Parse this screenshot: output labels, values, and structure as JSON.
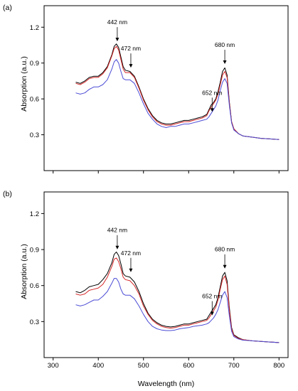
{
  "chart_data": [
    {
      "type": "line",
      "panel_label": "(a)",
      "xlabel": "",
      "ylabel": "Absorption (a.u.)",
      "xlim": [
        280,
        820
      ],
      "ylim": [
        0.0,
        1.38
      ],
      "xticks": [
        300,
        400,
        500,
        600,
        700,
        800
      ],
      "xtick_labels": [
        "",
        "",
        "",
        "",
        "",
        ""
      ],
      "yticks": [
        0.3,
        0.6,
        0.9,
        1.2
      ],
      "ytick_labels": [
        "0.3",
        "0.6",
        "0.9",
        "1.2"
      ],
      "grid": false,
      "legend": "none",
      "x": [
        350,
        360,
        370,
        380,
        390,
        400,
        410,
        420,
        430,
        435,
        440,
        445,
        450,
        455,
        460,
        470,
        480,
        490,
        500,
        510,
        520,
        530,
        540,
        550,
        560,
        570,
        580,
        590,
        600,
        610,
        620,
        630,
        640,
        645,
        650,
        655,
        660,
        665,
        670,
        675,
        680,
        685,
        690,
        695,
        700,
        710,
        720,
        740,
        760,
        780,
        800
      ],
      "series": [
        {
          "color": "#000000",
          "values": [
            0.74,
            0.73,
            0.75,
            0.78,
            0.79,
            0.79,
            0.82,
            0.87,
            0.97,
            1.04,
            1.06,
            1.03,
            0.95,
            0.87,
            0.84,
            0.83,
            0.79,
            0.7,
            0.6,
            0.52,
            0.46,
            0.42,
            0.4,
            0.39,
            0.39,
            0.4,
            0.41,
            0.42,
            0.42,
            0.43,
            0.44,
            0.45,
            0.47,
            0.51,
            0.55,
            0.57,
            0.6,
            0.66,
            0.74,
            0.83,
            0.86,
            0.8,
            0.58,
            0.41,
            0.35,
            0.31,
            0.29,
            0.28,
            0.27,
            0.265,
            0.26
          ]
        },
        {
          "color": "#d62728",
          "values": [
            0.73,
            0.72,
            0.74,
            0.77,
            0.78,
            0.78,
            0.81,
            0.86,
            0.96,
            1.02,
            1.04,
            1.01,
            0.93,
            0.85,
            0.82,
            0.82,
            0.78,
            0.69,
            0.59,
            0.51,
            0.45,
            0.41,
            0.39,
            0.38,
            0.38,
            0.39,
            0.4,
            0.41,
            0.41,
            0.42,
            0.43,
            0.44,
            0.46,
            0.5,
            0.53,
            0.56,
            0.59,
            0.64,
            0.72,
            0.8,
            0.83,
            0.78,
            0.57,
            0.41,
            0.35,
            0.31,
            0.29,
            0.28,
            0.27,
            0.265,
            0.26
          ]
        },
        {
          "color": "#4c4cd6",
          "values": [
            0.65,
            0.64,
            0.65,
            0.68,
            0.7,
            0.7,
            0.72,
            0.76,
            0.85,
            0.91,
            0.93,
            0.9,
            0.83,
            0.77,
            0.76,
            0.76,
            0.73,
            0.65,
            0.56,
            0.48,
            0.43,
            0.39,
            0.37,
            0.36,
            0.37,
            0.37,
            0.38,
            0.39,
            0.39,
            0.4,
            0.41,
            0.42,
            0.43,
            0.45,
            0.48,
            0.51,
            0.54,
            0.59,
            0.67,
            0.74,
            0.77,
            0.73,
            0.55,
            0.4,
            0.34,
            0.31,
            0.29,
            0.28,
            0.27,
            0.265,
            0.26
          ]
        }
      ],
      "annotations": [
        {
          "text": "442 nm",
          "x": 442,
          "tip_y": 1.07
        },
        {
          "text": "472 nm",
          "x": 472,
          "tip_y": 0.85
        },
        {
          "text": "652 nm",
          "x": 652,
          "tip_y": 0.48
        },
        {
          "text": "680 nm",
          "x": 680,
          "tip_y": 0.88
        }
      ]
    },
    {
      "type": "line",
      "panel_label": "(b)",
      "xlabel": "Wavelength (nm)",
      "ylabel": "Absorption (a.u.)",
      "xlim": [
        280,
        820
      ],
      "ylim": [
        0.0,
        1.38
      ],
      "xticks": [
        300,
        400,
        500,
        600,
        700,
        800
      ],
      "xtick_labels": [
        "300",
        "400",
        "500",
        "600",
        "700",
        "800"
      ],
      "yticks": [
        0.3,
        0.6,
        0.9,
        1.2
      ],
      "ytick_labels": [
        "0.3",
        "0.6",
        "0.9",
        "1.2"
      ],
      "grid": false,
      "legend": "none",
      "x": [
        350,
        360,
        370,
        380,
        390,
        400,
        410,
        420,
        430,
        435,
        440,
        445,
        450,
        455,
        460,
        470,
        480,
        490,
        500,
        510,
        520,
        530,
        540,
        550,
        560,
        570,
        580,
        590,
        600,
        610,
        620,
        630,
        640,
        645,
        650,
        655,
        660,
        665,
        670,
        675,
        680,
        685,
        690,
        695,
        700,
        710,
        720,
        740,
        760,
        780,
        800
      ],
      "series": [
        {
          "color": "#000000",
          "values": [
            0.55,
            0.54,
            0.56,
            0.59,
            0.6,
            0.61,
            0.65,
            0.7,
            0.79,
            0.86,
            0.88,
            0.85,
            0.78,
            0.7,
            0.68,
            0.67,
            0.63,
            0.55,
            0.45,
            0.37,
            0.32,
            0.29,
            0.27,
            0.26,
            0.255,
            0.26,
            0.27,
            0.28,
            0.28,
            0.29,
            0.3,
            0.31,
            0.32,
            0.35,
            0.38,
            0.41,
            0.44,
            0.5,
            0.59,
            0.68,
            0.71,
            0.64,
            0.42,
            0.25,
            0.19,
            0.165,
            0.15,
            0.14,
            0.135,
            0.13,
            0.125
          ]
        },
        {
          "color": "#d62728",
          "values": [
            0.53,
            0.52,
            0.53,
            0.56,
            0.57,
            0.58,
            0.61,
            0.67,
            0.76,
            0.82,
            0.83,
            0.8,
            0.74,
            0.67,
            0.65,
            0.64,
            0.6,
            0.53,
            0.43,
            0.36,
            0.31,
            0.28,
            0.26,
            0.25,
            0.245,
            0.25,
            0.26,
            0.27,
            0.27,
            0.28,
            0.29,
            0.3,
            0.31,
            0.33,
            0.36,
            0.39,
            0.42,
            0.48,
            0.57,
            0.65,
            0.68,
            0.61,
            0.4,
            0.24,
            0.185,
            0.16,
            0.15,
            0.14,
            0.135,
            0.13,
            0.125
          ]
        },
        {
          "color": "#4c4cd6",
          "values": [
            0.44,
            0.43,
            0.44,
            0.46,
            0.48,
            0.48,
            0.51,
            0.55,
            0.62,
            0.66,
            0.66,
            0.63,
            0.57,
            0.53,
            0.52,
            0.52,
            0.49,
            0.43,
            0.36,
            0.3,
            0.26,
            0.24,
            0.23,
            0.225,
            0.225,
            0.23,
            0.24,
            0.245,
            0.25,
            0.26,
            0.265,
            0.27,
            0.28,
            0.29,
            0.31,
            0.33,
            0.36,
            0.4,
            0.46,
            0.52,
            0.55,
            0.5,
            0.35,
            0.22,
            0.175,
            0.155,
            0.145,
            0.14,
            0.135,
            0.13,
            0.125
          ]
        }
      ],
      "annotations": [
        {
          "text": "442 nm",
          "x": 442,
          "tip_y": 0.89
        },
        {
          "text": "472 nm",
          "x": 472,
          "tip_y": 0.7
        },
        {
          "text": "652 nm",
          "x": 652,
          "tip_y": 0.34
        },
        {
          "text": "680 nm",
          "x": 680,
          "tip_y": 0.73
        }
      ]
    }
  ]
}
